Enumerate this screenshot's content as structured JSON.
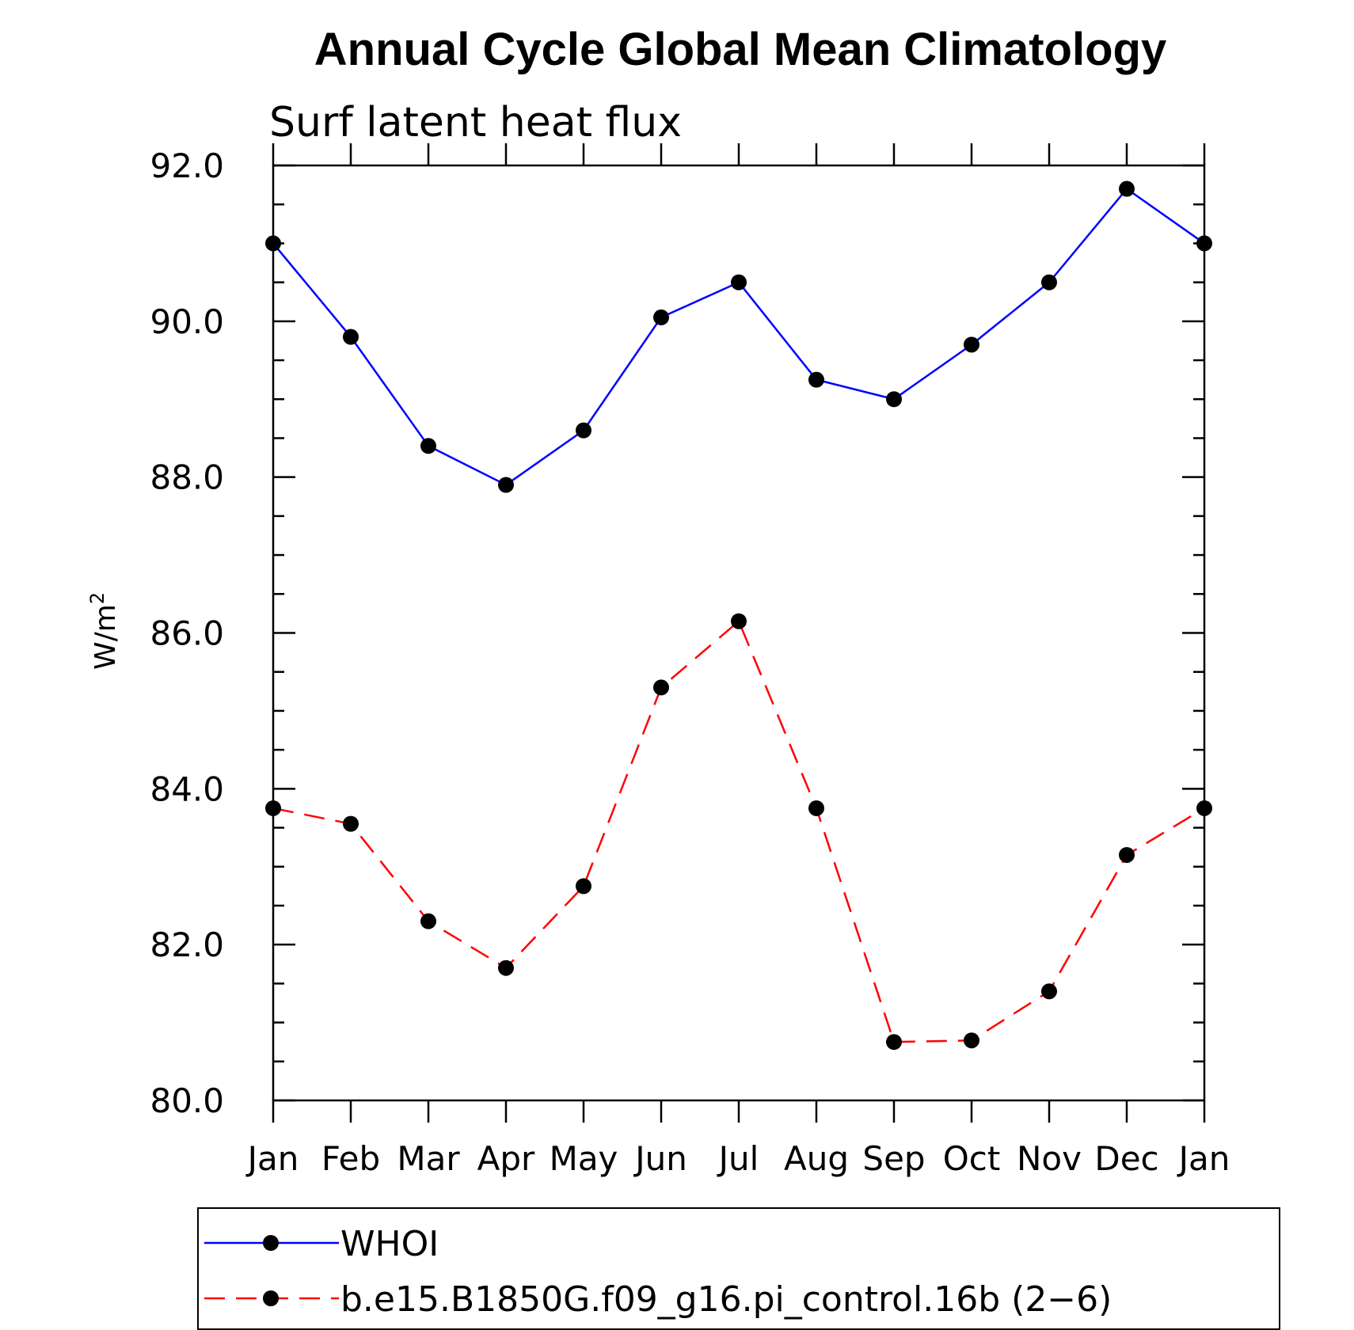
{
  "chart_data": {
    "type": "line",
    "title": "Annual Cycle Global Mean Climatology",
    "subtitle": "Surf latent heat flux",
    "xlabel": "",
    "ylabel": "W/m",
    "ylabel_superscript": "2",
    "categories": [
      "Jan",
      "Feb",
      "Mar",
      "Apr",
      "May",
      "Jun",
      "Jul",
      "Aug",
      "Sep",
      "Oct",
      "Nov",
      "Dec",
      "Jan"
    ],
    "ylim": [
      80.0,
      92.0
    ],
    "ymajor_ticks": [
      "80.0",
      "82.0",
      "84.0",
      "86.0",
      "88.0",
      "90.0",
      "92.0"
    ],
    "yminor_step": 0.5,
    "grid": false,
    "legend_position": "bottom",
    "series": [
      {
        "name": "WHOI",
        "color": "#0000ff",
        "dash": "solid",
        "marker": "filled-circle",
        "values": [
          91.0,
          89.8,
          88.4,
          87.9,
          88.6,
          90.05,
          90.5,
          89.25,
          89.0,
          89.7,
          90.5,
          91.7,
          91.0
        ]
      },
      {
        "name": "b.e15.B1850G.f09_g16.pi_control.16b (2−6)",
        "color": "#ff0000",
        "dash": "dashed",
        "marker": "filled-circle",
        "values": [
          83.75,
          83.55,
          82.3,
          81.7,
          82.75,
          85.3,
          86.15,
          83.75,
          80.75,
          80.77,
          81.4,
          83.15,
          83.75
        ]
      }
    ]
  }
}
